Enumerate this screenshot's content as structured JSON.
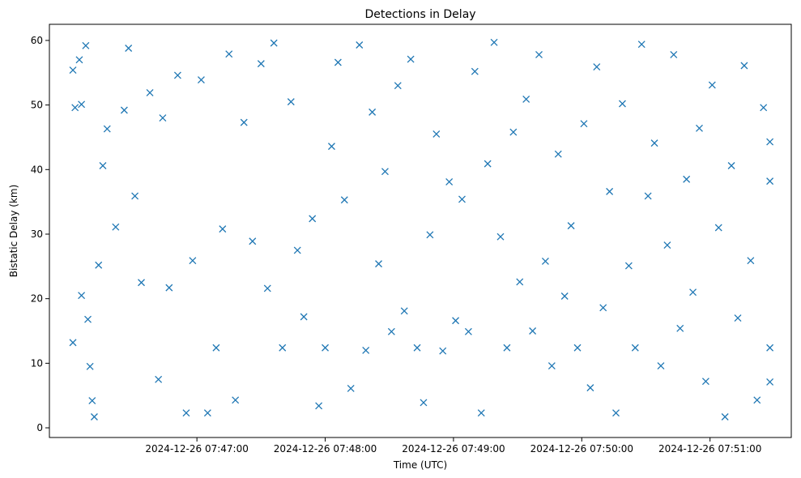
{
  "chart_data": {
    "type": "scatter",
    "title": "Detections in Delay",
    "xlabel": "Time (UTC)",
    "ylabel": "Bistatic Delay (km)",
    "marker": "x",
    "color": "#1f77b4",
    "grid": false,
    "legend": "none",
    "ylim": [
      -1.5,
      62.5
    ],
    "xlim": [
      "2024-12-26 07:45:51",
      "2024-12-26 07:51:38"
    ],
    "x_ticks": [
      "2024-12-26 07:47:00",
      "2024-12-26 07:48:00",
      "2024-12-26 07:49:00",
      "2024-12-26 07:50:00",
      "2024-12-26 07:51:00"
    ],
    "y_ticks": [
      0,
      10,
      20,
      30,
      40,
      50,
      60
    ],
    "points": [
      [
        "2024-12-26 07:46:02",
        55.4
      ],
      [
        "2024-12-26 07:46:05",
        57.0
      ],
      [
        "2024-12-26 07:46:08",
        59.2
      ],
      [
        "2024-12-26 07:46:03",
        49.6
      ],
      [
        "2024-12-26 07:46:06",
        50.1
      ],
      [
        "2024-12-26 07:46:02",
        13.2
      ],
      [
        "2024-12-26 07:46:06",
        20.5
      ],
      [
        "2024-12-26 07:46:09",
        16.8
      ],
      [
        "2024-12-26 07:46:10",
        9.5
      ],
      [
        "2024-12-26 07:46:11",
        4.2
      ],
      [
        "2024-12-26 07:46:12",
        1.7
      ],
      [
        "2024-12-26 07:46:14",
        25.2
      ],
      [
        "2024-12-26 07:46:16",
        40.6
      ],
      [
        "2024-12-26 07:46:18",
        46.3
      ],
      [
        "2024-12-26 07:46:22",
        31.1
      ],
      [
        "2024-12-26 07:46:26",
        49.2
      ],
      [
        "2024-12-26 07:46:28",
        58.8
      ],
      [
        "2024-12-26 07:46:31",
        35.9
      ],
      [
        "2024-12-26 07:46:34",
        22.5
      ],
      [
        "2024-12-26 07:46:38",
        51.9
      ],
      [
        "2024-12-26 07:46:42",
        7.5
      ],
      [
        "2024-12-26 07:46:44",
        48.0
      ],
      [
        "2024-12-26 07:46:47",
        21.7
      ],
      [
        "2024-12-26 07:46:51",
        54.6
      ],
      [
        "2024-12-26 07:46:55",
        2.3
      ],
      [
        "2024-12-26 07:46:58",
        25.9
      ],
      [
        "2024-12-26 07:47:02",
        53.9
      ],
      [
        "2024-12-26 07:47:05",
        2.3
      ],
      [
        "2024-12-26 07:47:09",
        12.4
      ],
      [
        "2024-12-26 07:47:12",
        30.8
      ],
      [
        "2024-12-26 07:47:15",
        57.9
      ],
      [
        "2024-12-26 07:47:18",
        4.3
      ],
      [
        "2024-12-26 07:47:22",
        47.3
      ],
      [
        "2024-12-26 07:47:26",
        28.9
      ],
      [
        "2024-12-26 07:47:30",
        56.4
      ],
      [
        "2024-12-26 07:47:33",
        21.6
      ],
      [
        "2024-12-26 07:47:36",
        59.6
      ],
      [
        "2024-12-26 07:47:40",
        12.4
      ],
      [
        "2024-12-26 07:47:44",
        50.5
      ],
      [
        "2024-12-26 07:47:47",
        27.5
      ],
      [
        "2024-12-26 07:47:50",
        17.2
      ],
      [
        "2024-12-26 07:47:54",
        32.4
      ],
      [
        "2024-12-26 07:47:57",
        3.4
      ],
      [
        "2024-12-26 07:48:00",
        12.4
      ],
      [
        "2024-12-26 07:48:03",
        43.6
      ],
      [
        "2024-12-26 07:48:06",
        56.6
      ],
      [
        "2024-12-26 07:48:09",
        35.3
      ],
      [
        "2024-12-26 07:48:12",
        6.1
      ],
      [
        "2024-12-26 07:48:16",
        59.3
      ],
      [
        "2024-12-26 07:48:19",
        12.0
      ],
      [
        "2024-12-26 07:48:22",
        48.9
      ],
      [
        "2024-12-26 07:48:25",
        25.4
      ],
      [
        "2024-12-26 07:48:28",
        39.7
      ],
      [
        "2024-12-26 07:48:31",
        14.9
      ],
      [
        "2024-12-26 07:48:34",
        53.0
      ],
      [
        "2024-12-26 07:48:37",
        18.1
      ],
      [
        "2024-12-26 07:48:40",
        57.1
      ],
      [
        "2024-12-26 07:48:43",
        12.4
      ],
      [
        "2024-12-26 07:48:46",
        3.9
      ],
      [
        "2024-12-26 07:48:49",
        29.9
      ],
      [
        "2024-12-26 07:48:52",
        45.5
      ],
      [
        "2024-12-26 07:48:55",
        11.9
      ],
      [
        "2024-12-26 07:48:58",
        38.1
      ],
      [
        "2024-12-26 07:49:01",
        16.6
      ],
      [
        "2024-12-26 07:49:04",
        35.4
      ],
      [
        "2024-12-26 07:49:07",
        14.9
      ],
      [
        "2024-12-26 07:49:10",
        55.2
      ],
      [
        "2024-12-26 07:49:13",
        2.3
      ],
      [
        "2024-12-26 07:49:16",
        40.9
      ],
      [
        "2024-12-26 07:49:19",
        59.7
      ],
      [
        "2024-12-26 07:49:22",
        29.6
      ],
      [
        "2024-12-26 07:49:25",
        12.4
      ],
      [
        "2024-12-26 07:49:28",
        45.8
      ],
      [
        "2024-12-26 07:49:31",
        22.6
      ],
      [
        "2024-12-26 07:49:34",
        50.9
      ],
      [
        "2024-12-26 07:49:37",
        15.0
      ],
      [
        "2024-12-26 07:49:40",
        57.8
      ],
      [
        "2024-12-26 07:49:43",
        25.8
      ],
      [
        "2024-12-26 07:49:46",
        9.6
      ],
      [
        "2024-12-26 07:49:49",
        42.4
      ],
      [
        "2024-12-26 07:49:52",
        20.4
      ],
      [
        "2024-12-26 07:49:55",
        31.3
      ],
      [
        "2024-12-26 07:49:58",
        12.4
      ],
      [
        "2024-12-26 07:50:01",
        47.1
      ],
      [
        "2024-12-26 07:50:04",
        6.2
      ],
      [
        "2024-12-26 07:50:07",
        55.9
      ],
      [
        "2024-12-26 07:50:10",
        18.6
      ],
      [
        "2024-12-26 07:50:13",
        36.6
      ],
      [
        "2024-12-26 07:50:16",
        2.3
      ],
      [
        "2024-12-26 07:50:19",
        50.2
      ],
      [
        "2024-12-26 07:50:22",
        25.1
      ],
      [
        "2024-12-26 07:50:25",
        12.4
      ],
      [
        "2024-12-26 07:50:28",
        59.4
      ],
      [
        "2024-12-26 07:50:31",
        35.9
      ],
      [
        "2024-12-26 07:50:34",
        44.1
      ],
      [
        "2024-12-26 07:50:37",
        9.6
      ],
      [
        "2024-12-26 07:50:40",
        28.3
      ],
      [
        "2024-12-26 07:50:43",
        57.8
      ],
      [
        "2024-12-26 07:50:46",
        15.4
      ],
      [
        "2024-12-26 07:50:49",
        38.5
      ],
      [
        "2024-12-26 07:50:52",
        21.0
      ],
      [
        "2024-12-26 07:50:55",
        46.4
      ],
      [
        "2024-12-26 07:50:58",
        7.2
      ],
      [
        "2024-12-26 07:51:01",
        53.1
      ],
      [
        "2024-12-26 07:51:04",
        31.0
      ],
      [
        "2024-12-26 07:51:07",
        1.7
      ],
      [
        "2024-12-26 07:51:10",
        40.6
      ],
      [
        "2024-12-26 07:51:13",
        17.0
      ],
      [
        "2024-12-26 07:51:16",
        56.1
      ],
      [
        "2024-12-26 07:51:19",
        25.9
      ],
      [
        "2024-12-26 07:51:22",
        4.3
      ],
      [
        "2024-12-26 07:51:25",
        49.6
      ],
      [
        "2024-12-26 07:51:28",
        38.2
      ],
      [
        "2024-12-26 07:51:28",
        12.4
      ],
      [
        "2024-12-26 07:51:28",
        44.3
      ],
      [
        "2024-12-26 07:51:28",
        7.1
      ]
    ]
  }
}
